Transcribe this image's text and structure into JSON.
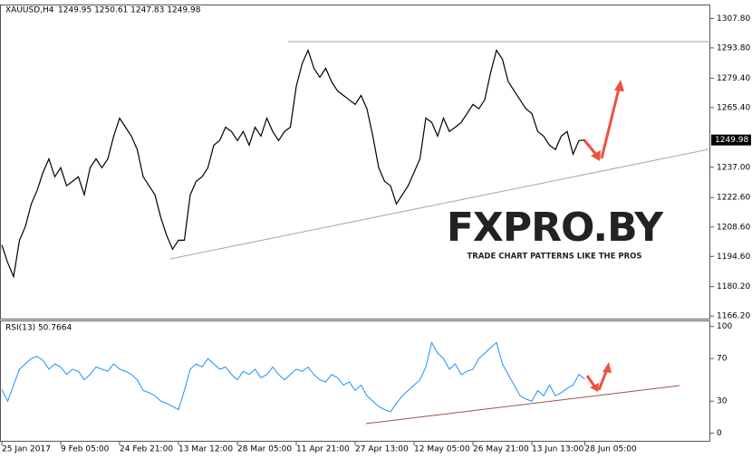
{
  "chart_data": [
    {
      "type": "line",
      "title": "XAUUSD,H4",
      "subtitle": "1249.95 1250.61 1247.83 1249.98",
      "color": "#000000",
      "last_price": 1249.98,
      "watermark": "FXPRO.BY",
      "watermark_tagline": "TRADE CHART PATTERNS LIKE THE PROS",
      "categories": [
        "25 Jan 2017",
        null,
        null,
        null,
        null,
        null,
        null,
        null,
        null,
        null,
        "9 Feb 05:00",
        null,
        null,
        null,
        null,
        null,
        null,
        null,
        null,
        null,
        "24 Feb 21:00",
        null,
        null,
        null,
        null,
        null,
        null,
        null,
        null,
        null,
        "13 Mar 12:00",
        null,
        null,
        null,
        null,
        null,
        null,
        null,
        null,
        null,
        "28 Mar 05:00",
        null,
        null,
        null,
        null,
        null,
        null,
        null,
        null,
        null,
        "11 Apr 21:00",
        null,
        null,
        null,
        null,
        null,
        null,
        null,
        null,
        null,
        "27 Apr 13:00",
        null,
        null,
        null,
        null,
        null,
        null,
        null,
        null,
        null,
        "12 May 05:00",
        null,
        null,
        null,
        null,
        null,
        null,
        null,
        null,
        null,
        "26 May 21:00",
        null,
        null,
        null,
        null,
        null,
        null,
        null,
        null,
        null,
        "13 Jun 13:00",
        null,
        null,
        null,
        null,
        null,
        null,
        null,
        null,
        "28 Jun 05:00"
      ],
      "values": [
        1200,
        1191.6,
        1185,
        1202.3,
        1208.8,
        1219.5,
        1226,
        1234.6,
        1241,
        1232.5,
        1236.8,
        1228.2,
        1230.3,
        1232.5,
        1223.9,
        1236.8,
        1241,
        1236.8,
        1241,
        1251.8,
        1260.4,
        1256.1,
        1251.8,
        1245.4,
        1232.5,
        1228.2,
        1223.9,
        1213.1,
        1204.5,
        1198,
        1202.3,
        1202.3,
        1223.9,
        1230.3,
        1232.5,
        1236.8,
        1247.5,
        1249.7,
        1256.1,
        1254,
        1249.7,
        1254,
        1247.5,
        1256.1,
        1251.8,
        1260.4,
        1254,
        1249.7,
        1254,
        1256.1,
        1275.5,
        1286.3,
        1292.7,
        1284.1,
        1279.8,
        1284.1,
        1277.7,
        1273.4,
        1271.2,
        1269.1,
        1266.9,
        1271.2,
        1264.8,
        1251.8,
        1236.8,
        1230.3,
        1228.2,
        1219.5,
        1223.9,
        1228.2,
        1234.6,
        1241,
        1260.4,
        1258.3,
        1251.8,
        1260.4,
        1254,
        1256.1,
        1258.3,
        1262.6,
        1266.9,
        1264.8,
        1269.1,
        1282,
        1292.7,
        1288.4,
        1277.7,
        1273.4,
        1269.1,
        1264.8,
        1262.6,
        1254,
        1251.8,
        1247.5,
        1245.4,
        1251.8,
        1254,
        1243.2,
        1249.7,
        1249.98
      ],
      "xlim": [
        0,
        120
      ],
      "ylim": [
        1165,
        1314
      ],
      "yticks": [
        {
          "value": 1307.8,
          "label": "1307.80"
        },
        {
          "value": 1293.8,
          "label": "1293.80"
        },
        {
          "value": 1279.4,
          "label": "1279.40"
        },
        {
          "value": 1265.4,
          "label": "1265.40"
        },
        {
          "value": 1237,
          "label": "1237.00"
        },
        {
          "value": 1222.6,
          "label": "1222.60"
        },
        {
          "value": 1208.6,
          "label": "1208.60"
        },
        {
          "value": 1194.6,
          "label": "1194.60"
        },
        {
          "value": 1180.2,
          "label": "1180.20"
        },
        {
          "value": 1166.2,
          "label": "1166.20"
        }
      ]
    },
    {
      "type": "line",
      "title": "RSI(13) 50.7664",
      "color": "#1e90ff",
      "values": [
        41,
        30,
        45,
        60,
        65,
        70,
        72,
        68,
        60,
        65,
        62,
        55,
        60,
        58,
        50,
        55,
        62,
        60,
        58,
        65,
        60,
        58,
        55,
        50,
        40,
        38,
        35,
        30,
        28,
        25,
        22,
        40,
        60,
        65,
        62,
        70,
        65,
        60,
        62,
        55,
        50,
        58,
        55,
        60,
        52,
        55,
        62,
        55,
        50,
        55,
        60,
        58,
        62,
        55,
        50,
        48,
        55,
        52,
        45,
        48,
        40,
        45,
        35,
        30,
        25,
        22,
        20,
        28,
        35,
        40,
        45,
        50,
        62,
        85,
        75,
        70,
        60,
        65,
        55,
        58,
        60,
        70,
        75,
        80,
        85,
        65,
        55,
        45,
        35,
        32,
        30,
        40,
        35,
        45,
        35,
        38,
        42,
        45,
        55,
        50.7664
      ],
      "xlim": [
        0,
        120
      ],
      "ylim": [
        -8,
        104
      ],
      "yticks": [
        100,
        70,
        30,
        0
      ]
    }
  ]
}
